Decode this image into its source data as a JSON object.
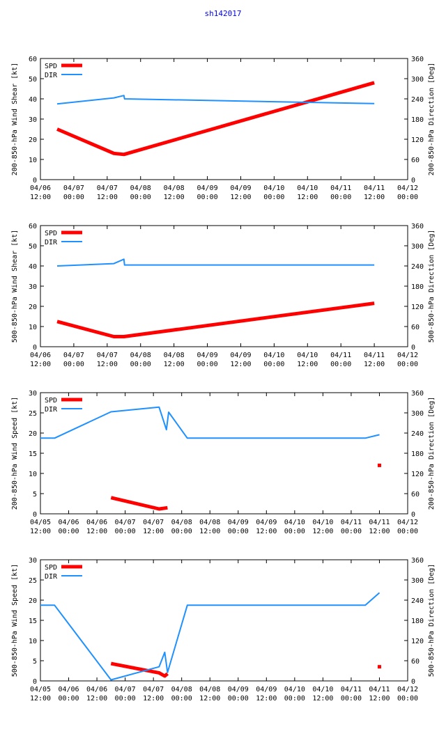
{
  "title": "sh142017",
  "colors": {
    "spd": "#ff0000",
    "dir": "#1e90ff",
    "axis": "#000000"
  },
  "chart_data": [
    {
      "type": "line",
      "ylabel_left": "200-850-hPa Wind Shear [kt]",
      "ylabel_right": "200-850-hPa Direction [Deg]",
      "ylim_left": [
        0,
        60
      ],
      "ylim_right": [
        0,
        360
      ],
      "yticks_left": [
        "0",
        "10",
        "20",
        "30",
        "40",
        "50",
        "60"
      ],
      "yticks_right": [
        "0",
        "60",
        "120",
        "180",
        "240",
        "300",
        "360"
      ],
      "xlim": [
        0,
        5.5
      ],
      "xticks": [
        [
          "04/06",
          "12:00"
        ],
        [
          "04/07",
          "00:00"
        ],
        [
          "04/07",
          "12:00"
        ],
        [
          "04/08",
          "00:00"
        ],
        [
          "04/08",
          "12:00"
        ],
        [
          "04/09",
          "00:00"
        ],
        [
          "04/09",
          "12:00"
        ],
        [
          "04/10",
          "00:00"
        ],
        [
          "04/10",
          "12:00"
        ],
        [
          "04/11",
          "00:00"
        ],
        [
          "04/11",
          "12:00"
        ],
        [
          "04/12",
          "00:00"
        ]
      ],
      "legend": [
        "SPD",
        "DIR"
      ],
      "series": [
        {
          "name": "SPD",
          "x": [
            0.25,
            1.1,
            1.25,
            5.0
          ],
          "y": [
            25,
            13,
            12.5,
            48
          ]
        },
        {
          "name": "DIR",
          "x": [
            0.25,
            1.1,
            1.25,
            1.26,
            5.0
          ],
          "y": [
            225,
            243,
            250,
            240,
            226
          ],
          "axis": "right"
        }
      ]
    },
    {
      "type": "line",
      "ylabel_left": "500-850-hPa Wind Shear [kt]",
      "ylabel_right": "500-850-hPa Direction [Deg]",
      "ylim_left": [
        0,
        60
      ],
      "ylim_right": [
        0,
        360
      ],
      "yticks_left": [
        "0",
        "10",
        "20",
        "30",
        "40",
        "50",
        "60"
      ],
      "yticks_right": [
        "0",
        "60",
        "120",
        "180",
        "240",
        "300",
        "360"
      ],
      "xlim": [
        0,
        5.5
      ],
      "xticks": [
        [
          "04/06",
          "12:00"
        ],
        [
          "04/07",
          "00:00"
        ],
        [
          "04/07",
          "12:00"
        ],
        [
          "04/08",
          "00:00"
        ],
        [
          "04/08",
          "12:00"
        ],
        [
          "04/09",
          "00:00"
        ],
        [
          "04/09",
          "12:00"
        ],
        [
          "04/10",
          "00:00"
        ],
        [
          "04/10",
          "12:00"
        ],
        [
          "04/11",
          "00:00"
        ],
        [
          "04/11",
          "12:00"
        ],
        [
          "04/12",
          "00:00"
        ]
      ],
      "legend": [
        "SPD",
        "DIR"
      ],
      "series": [
        {
          "name": "SPD",
          "x": [
            0.25,
            1.1,
            1.25,
            5.0
          ],
          "y": [
            12.5,
            5,
            5,
            21.5
          ]
        },
        {
          "name": "DIR",
          "x": [
            0.25,
            1.1,
            1.25,
            1.26,
            5.0
          ],
          "y": [
            240,
            247,
            260,
            243,
            243
          ],
          "axis": "right"
        }
      ]
    },
    {
      "type": "line",
      "ylabel_left": "200-850-hPa Wind Speed [kt]",
      "ylabel_right": "200-850-hPa Direction [Deg]",
      "ylim_left": [
        0,
        30
      ],
      "ylim_right": [
        0,
        360
      ],
      "yticks_left": [
        "0",
        "5",
        "10",
        "15",
        "20",
        "25",
        "30"
      ],
      "yticks_right": [
        "0",
        "60",
        "120",
        "180",
        "240",
        "300",
        "360"
      ],
      "xlim": [
        0,
        6.5
      ],
      "xticks": [
        [
          "04/05",
          "12:00"
        ],
        [
          "04/06",
          "00:00"
        ],
        [
          "04/06",
          "12:00"
        ],
        [
          "04/07",
          "00:00"
        ],
        [
          "04/07",
          "12:00"
        ],
        [
          "04/08",
          "00:00"
        ],
        [
          "04/08",
          "12:00"
        ],
        [
          "04/09",
          "00:00"
        ],
        [
          "04/09",
          "12:00"
        ],
        [
          "04/10",
          "00:00"
        ],
        [
          "04/10",
          "12:00"
        ],
        [
          "04/11",
          "00:00"
        ],
        [
          "04/11",
          "12:00"
        ],
        [
          "04/12",
          "00:00"
        ]
      ],
      "legend": [
        "SPD",
        "DIR"
      ],
      "series": [
        {
          "name": "SPD",
          "x": [
            1.25,
            2.1,
            2.25
          ],
          "y": [
            4,
            1.2,
            1.5
          ],
          "extra_points": [
            [
              6.0,
              12
            ]
          ]
        },
        {
          "name": "DIR",
          "x": [
            0,
            0.25,
            1.25,
            2.1,
            2.23,
            2.27,
            2.6,
            5.75,
            6.0
          ],
          "y": [
            225,
            225,
            303,
            317,
            250,
            302,
            225,
            225,
            235
          ],
          "axis": "right"
        }
      ]
    },
    {
      "type": "line",
      "ylabel_left": "500-850-hPa Wind Speed [kt]",
      "ylabel_right": "500-850-hPa Direction [Deg]",
      "ylim_left": [
        0,
        30
      ],
      "ylim_right": [
        0,
        360
      ],
      "yticks_left": [
        "0",
        "5",
        "10",
        "15",
        "20",
        "25",
        "30"
      ],
      "yticks_right": [
        "0",
        "60",
        "120",
        "180",
        "240",
        "300",
        "360"
      ],
      "xlim": [
        0,
        6.5
      ],
      "xticks": [
        [
          "04/05",
          "12:00"
        ],
        [
          "04/06",
          "00:00"
        ],
        [
          "04/06",
          "12:00"
        ],
        [
          "04/07",
          "00:00"
        ],
        [
          "04/07",
          "12:00"
        ],
        [
          "04/08",
          "00:00"
        ],
        [
          "04/08",
          "12:00"
        ],
        [
          "04/09",
          "00:00"
        ],
        [
          "04/09",
          "12:00"
        ],
        [
          "04/10",
          "00:00"
        ],
        [
          "04/10",
          "12:00"
        ],
        [
          "04/11",
          "00:00"
        ],
        [
          "04/11",
          "12:00"
        ],
        [
          "04/12",
          "00:00"
        ]
      ],
      "legend": [
        "SPD",
        "DIR"
      ],
      "series": [
        {
          "name": "SPD",
          "x": [
            1.25,
            2.1,
            2.2,
            2.25
          ],
          "y": [
            4.3,
            2,
            1.2,
            1.8
          ],
          "extra_points": [
            [
              6.0,
              3.5
            ]
          ]
        },
        {
          "name": "DIR",
          "x": [
            0,
            0.25,
            1.25,
            2.1,
            2.2,
            2.25,
            2.6,
            5.75,
            6.0
          ],
          "y": [
            225,
            225,
            3,
            42,
            85,
            25,
            225,
            225,
            262
          ],
          "axis": "right"
        }
      ]
    }
  ]
}
